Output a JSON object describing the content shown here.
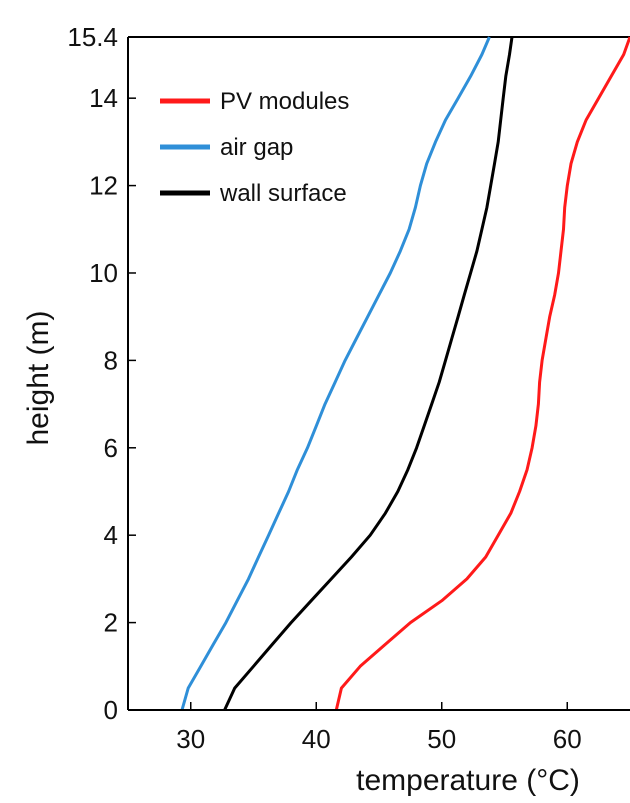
{
  "chart_data": {
    "type": "line",
    "title": "",
    "xlabel": "temperature (°C)",
    "ylabel": "height (m)",
    "xlim": [
      25,
      65
    ],
    "ylim": [
      0,
      15.4
    ],
    "xticks": [
      30,
      40,
      50,
      60
    ],
    "yticks": [
      0,
      2,
      4,
      6,
      8,
      10,
      12,
      14,
      15.4
    ],
    "ytick_labels": [
      "0",
      "2",
      "4",
      "6",
      "8",
      "10",
      "12",
      "14",
      "15.4"
    ],
    "grid": false,
    "legend_position": "top-left",
    "series": [
      {
        "name": "PV modules",
        "color": "#ff1a1a",
        "points": [
          [
            41.6,
            0
          ],
          [
            42.0,
            0.5
          ],
          [
            43.5,
            1.0
          ],
          [
            45.5,
            1.5
          ],
          [
            47.5,
            2.0
          ],
          [
            50.0,
            2.5
          ],
          [
            52.0,
            3.0
          ],
          [
            53.5,
            3.5
          ],
          [
            54.5,
            4.0
          ],
          [
            55.5,
            4.5
          ],
          [
            56.2,
            5.0
          ],
          [
            56.8,
            5.5
          ],
          [
            57.2,
            6.0
          ],
          [
            57.5,
            6.5
          ],
          [
            57.7,
            7.0
          ],
          [
            57.8,
            7.5
          ],
          [
            58.0,
            8.0
          ],
          [
            58.3,
            8.5
          ],
          [
            58.6,
            9.0
          ],
          [
            59.0,
            9.5
          ],
          [
            59.3,
            10.0
          ],
          [
            59.5,
            10.5
          ],
          [
            59.7,
            11.0
          ],
          [
            59.8,
            11.5
          ],
          [
            60.0,
            12.0
          ],
          [
            60.3,
            12.5
          ],
          [
            60.8,
            13.0
          ],
          [
            61.5,
            13.5
          ],
          [
            62.5,
            14.0
          ],
          [
            63.5,
            14.5
          ],
          [
            64.5,
            15.0
          ],
          [
            65.0,
            15.4
          ]
        ]
      },
      {
        "name": "air gap",
        "color": "#2f8fd8",
        "points": [
          [
            29.3,
            0
          ],
          [
            29.8,
            0.5
          ],
          [
            30.8,
            1.0
          ],
          [
            31.8,
            1.5
          ],
          [
            32.8,
            2.0
          ],
          [
            33.7,
            2.5
          ],
          [
            34.6,
            3.0
          ],
          [
            35.4,
            3.5
          ],
          [
            36.2,
            4.0
          ],
          [
            37.0,
            4.5
          ],
          [
            37.8,
            5.0
          ],
          [
            38.5,
            5.5
          ],
          [
            39.3,
            6.0
          ],
          [
            40.0,
            6.5
          ],
          [
            40.7,
            7.0
          ],
          [
            41.5,
            7.5
          ],
          [
            42.3,
            8.0
          ],
          [
            43.2,
            8.5
          ],
          [
            44.1,
            9.0
          ],
          [
            45.0,
            9.5
          ],
          [
            45.9,
            10.0
          ],
          [
            46.7,
            10.5
          ],
          [
            47.4,
            11.0
          ],
          [
            47.9,
            11.5
          ],
          [
            48.3,
            12.0
          ],
          [
            48.8,
            12.5
          ],
          [
            49.5,
            13.0
          ],
          [
            50.3,
            13.5
          ],
          [
            51.3,
            14.0
          ],
          [
            52.3,
            14.5
          ],
          [
            53.2,
            15.0
          ],
          [
            53.8,
            15.4
          ]
        ]
      },
      {
        "name": "wall surface",
        "color": "#000000",
        "points": [
          [
            32.7,
            0
          ],
          [
            33.5,
            0.5
          ],
          [
            35.0,
            1.0
          ],
          [
            36.5,
            1.5
          ],
          [
            38.0,
            2.0
          ],
          [
            39.6,
            2.5
          ],
          [
            41.2,
            3.0
          ],
          [
            42.8,
            3.5
          ],
          [
            44.3,
            4.0
          ],
          [
            45.5,
            4.5
          ],
          [
            46.5,
            5.0
          ],
          [
            47.3,
            5.5
          ],
          [
            48.0,
            6.0
          ],
          [
            48.6,
            6.5
          ],
          [
            49.2,
            7.0
          ],
          [
            49.8,
            7.5
          ],
          [
            50.3,
            8.0
          ],
          [
            50.8,
            8.5
          ],
          [
            51.3,
            9.0
          ],
          [
            51.8,
            9.5
          ],
          [
            52.3,
            10.0
          ],
          [
            52.8,
            10.5
          ],
          [
            53.2,
            11.0
          ],
          [
            53.6,
            11.5
          ],
          [
            53.9,
            12.0
          ],
          [
            54.2,
            12.5
          ],
          [
            54.5,
            13.0
          ],
          [
            54.7,
            13.5
          ],
          [
            54.9,
            14.0
          ],
          [
            55.1,
            14.5
          ],
          [
            55.4,
            15.0
          ],
          [
            55.6,
            15.4
          ]
        ]
      }
    ]
  }
}
